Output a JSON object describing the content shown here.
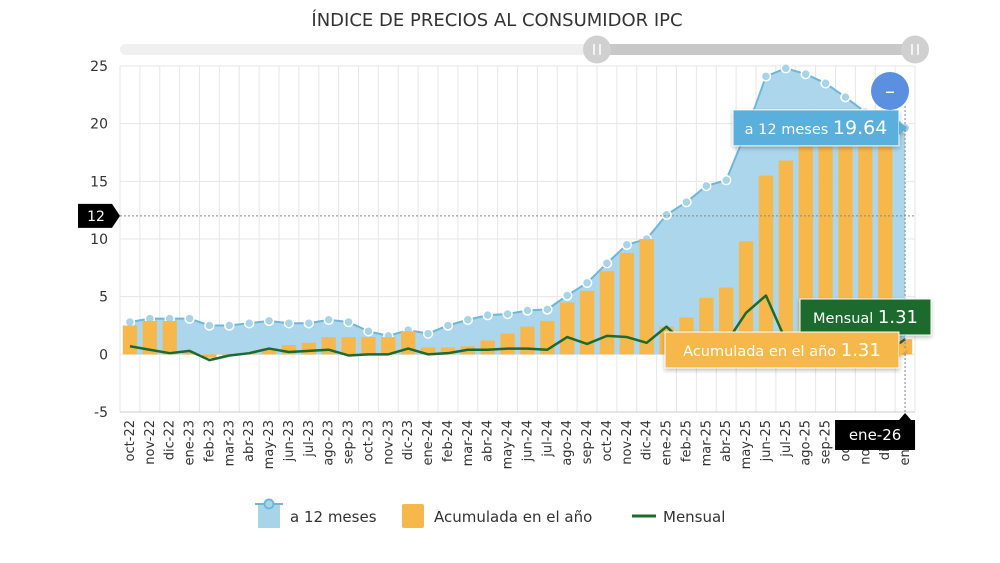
{
  "chart_data": {
    "type": "area",
    "title": "ÍNDICE DE PRECIOS AL CONSUMIDOR IPC",
    "categories": [
      "oct-22",
      "nov-22",
      "dic-22",
      "ene-23",
      "feb-23",
      "mar-23",
      "abr-23",
      "may-23",
      "jun-23",
      "jul-23",
      "ago-23",
      "sep-23",
      "oct-23",
      "nov-23",
      "dic-23",
      "ene-24",
      "feb-24",
      "mar-24",
      "abr-24",
      "may-24",
      "jun-24",
      "jul-24",
      "ago-24",
      "sep-24",
      "oct-24",
      "nov-24",
      "dic-24",
      "ene-25",
      "feb-25",
      "mar-25",
      "abr-25",
      "may-25",
      "jun-25",
      "jul-25",
      "ago-25",
      "sep-25",
      "oct-25",
      "nov-25",
      "dic-25",
      "ene-26"
    ],
    "ylim": [
      -5,
      25
    ],
    "yticks": [
      -5,
      0,
      5,
      10,
      15,
      20,
      25
    ],
    "series": [
      {
        "name": "a 12 meses",
        "kind": "area",
        "color": "#a8d4ea",
        "stroke": "#6fb6db",
        "values": [
          2.8,
          3.1,
          3.1,
          3.1,
          2.5,
          2.5,
          2.7,
          2.9,
          2.7,
          2.7,
          3.0,
          2.8,
          2.0,
          1.6,
          2.1,
          1.8,
          2.5,
          3.0,
          3.4,
          3.5,
          3.8,
          3.9,
          5.1,
          6.2,
          7.9,
          9.5,
          10.0,
          12.1,
          13.2,
          14.6,
          15.1,
          19.3,
          24.1,
          24.8,
          24.3,
          23.5,
          22.3,
          21.0,
          20.2,
          19.64
        ]
      },
      {
        "name": "Acumulada en el año",
        "kind": "bar",
        "color": "#f7b84b",
        "values": [
          2.5,
          2.9,
          2.9,
          0.2,
          -0.3,
          -0.1,
          0.1,
          0.5,
          0.8,
          1.0,
          1.5,
          1.5,
          1.5,
          1.5,
          2.0,
          0.6,
          0.6,
          0.7,
          1.2,
          1.8,
          2.4,
          2.9,
          4.5,
          5.5,
          7.2,
          8.8,
          10.0,
          2.4,
          3.2,
          4.9,
          5.8,
          9.8,
          15.5,
          16.8,
          18.2,
          19.3,
          19.6,
          19.8,
          20.0,
          1.31
        ]
      },
      {
        "name": "Mensual",
        "kind": "line",
        "color": "#1e6a2e",
        "values": [
          0.7,
          0.4,
          0.1,
          0.3,
          -0.5,
          -0.1,
          0.1,
          0.5,
          0.2,
          0.3,
          0.4,
          -0.1,
          0.0,
          0.0,
          0.5,
          0.0,
          0.1,
          0.4,
          0.4,
          0.5,
          0.5,
          0.4,
          1.5,
          0.9,
          1.6,
          1.5,
          1.0,
          2.4,
          0.8,
          1.6,
          1.0,
          3.6,
          5.1,
          1.2,
          1.3,
          0.9,
          0.4,
          0.2,
          0.1,
          1.31
        ]
      }
    ],
    "crosshair_y_label": "12",
    "hover_category": "ene-26",
    "tooltips": [
      {
        "series": "a 12 meses",
        "label": "a 12 meses",
        "value": "19.64",
        "color": "#5aafdc"
      },
      {
        "series": "Mensual",
        "label": "Mensual",
        "value": "1.31",
        "color": "#1e6a2e"
      },
      {
        "series": "Acumulada en el año",
        "label": "Acumulada en el año",
        "value": "1.31",
        "color": "#f7b84b"
      }
    ],
    "legend": [
      {
        "name": "a 12 meses",
        "kind": "area",
        "color": "#a8d4ea",
        "stroke": "#6fb6db"
      },
      {
        "name": "Acumulada en el año",
        "kind": "bar",
        "color": "#f7b84b"
      },
      {
        "name": "Mensual",
        "kind": "line",
        "color": "#1e6a2e"
      }
    ],
    "legend_position": "bottom-center",
    "grid": true
  },
  "navigator": {
    "range_start_fraction": 0.6,
    "range_end_fraction": 1.0
  },
  "controls": {
    "zoom_out_symbol": "–"
  }
}
